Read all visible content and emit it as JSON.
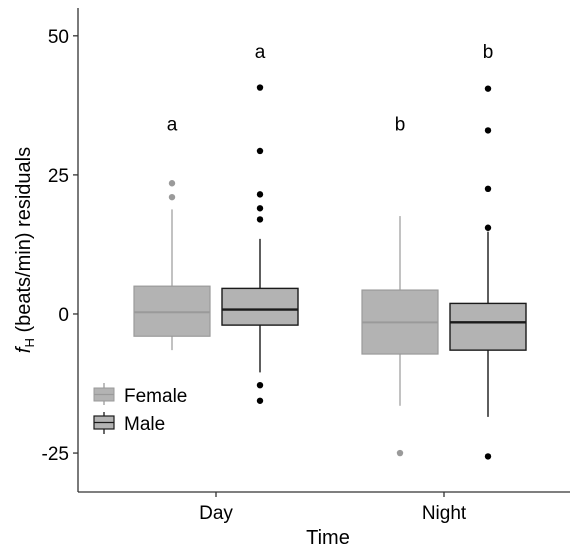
{
  "chart_data": {
    "type": "box",
    "xlabel": "Time",
    "ylabel_main": "f",
    "ylabel_sub": "H",
    "ylabel_rest": " (beats/min) residuals",
    "categories": [
      "Day",
      "Night"
    ],
    "ylim": [
      -32,
      55
    ],
    "yticks": [
      -25,
      0,
      25,
      50
    ],
    "ytick_labels": [
      "-25",
      "0",
      "25",
      "50"
    ],
    "grid": false,
    "legend_position": "bottom-left",
    "series": [
      {
        "name": "Female",
        "fill": "#b3b3b3",
        "line": "#9a9a9a",
        "outlier": "#9a9a9a",
        "boxes": [
          {
            "category": "Day",
            "whisker_low": -6.5,
            "q1": -4,
            "median": 0.3,
            "q3": 5,
            "whisker_high": 18.8,
            "outliers": [
              21,
              23.5
            ],
            "letter": "a"
          },
          {
            "category": "Night",
            "whisker_low": -16.5,
            "q1": -7.2,
            "median": -1.5,
            "q3": 4.3,
            "whisker_high": 17.6,
            "outliers": [
              -25
            ],
            "letter": "b"
          }
        ]
      },
      {
        "name": "Male",
        "fill": "#b3b3b3",
        "line": "#1a1a1a",
        "outlier": "#000000",
        "boxes": [
          {
            "category": "Day",
            "whisker_low": -10.5,
            "q1": -2,
            "median": 0.8,
            "q3": 4.6,
            "whisker_high": 13.5,
            "outliers": [
              -12.8,
              -15.6,
              17,
              19,
              21.5,
              29.3,
              40.7
            ],
            "letter": "a"
          },
          {
            "category": "Night",
            "whisker_low": -18.5,
            "q1": -6.5,
            "median": -1.5,
            "q3": 1.9,
            "whisker_high": 14.8,
            "outliers": [
              -25.6,
              15.5,
              22.5,
              33,
              40.5
            ],
            "letter": "b"
          }
        ]
      }
    ]
  }
}
